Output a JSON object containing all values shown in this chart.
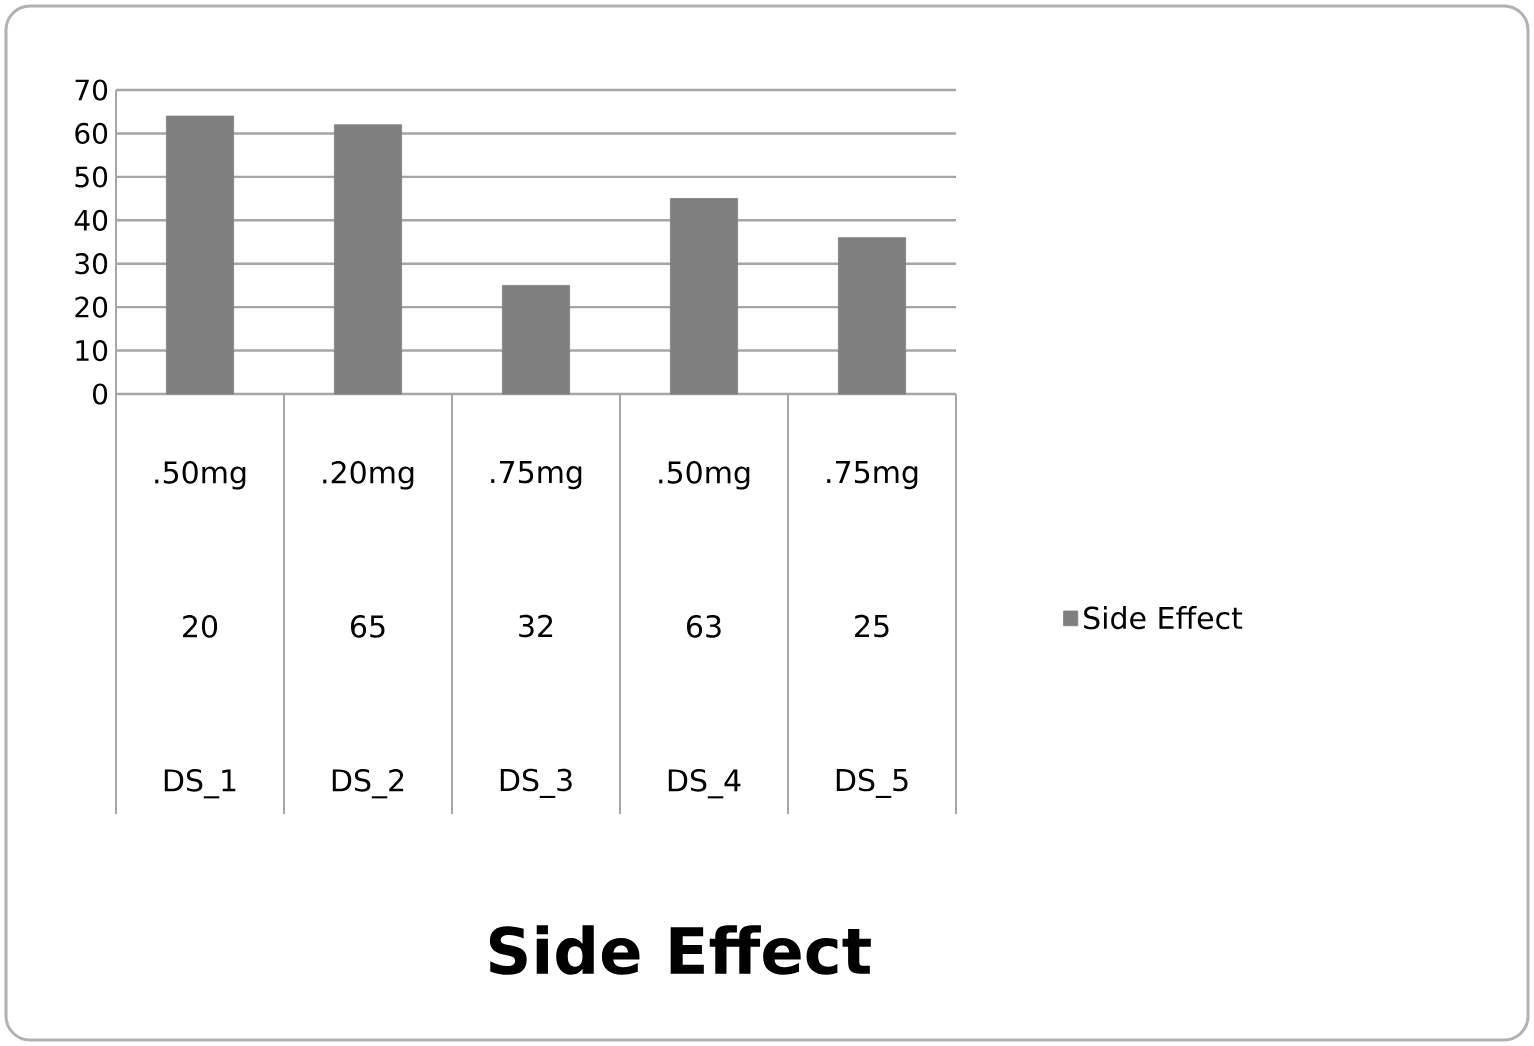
{
  "chart_data": {
    "type": "bar",
    "title": "Side Effect",
    "categories": [
      ".50mg",
      ".20mg",
      ".75mg",
      ".50mg",
      ".75mg"
    ],
    "series": [
      {
        "name": "Side Effect",
        "color": "#7f7f7f",
        "values": [
          64,
          62,
          25,
          45,
          36
        ]
      }
    ],
    "annotations": [
      "20",
      "65",
      "32",
      "63",
      "25",
      "DS_1",
      "DS_2",
      "DS_3",
      "DS_4",
      "DS_5"
    ],
    "ylim": [
      0,
      70
    ],
    "yticks": [
      0,
      10,
      20,
      30,
      40,
      50,
      60,
      70
    ],
    "grid": "y",
    "legend": "right"
  }
}
